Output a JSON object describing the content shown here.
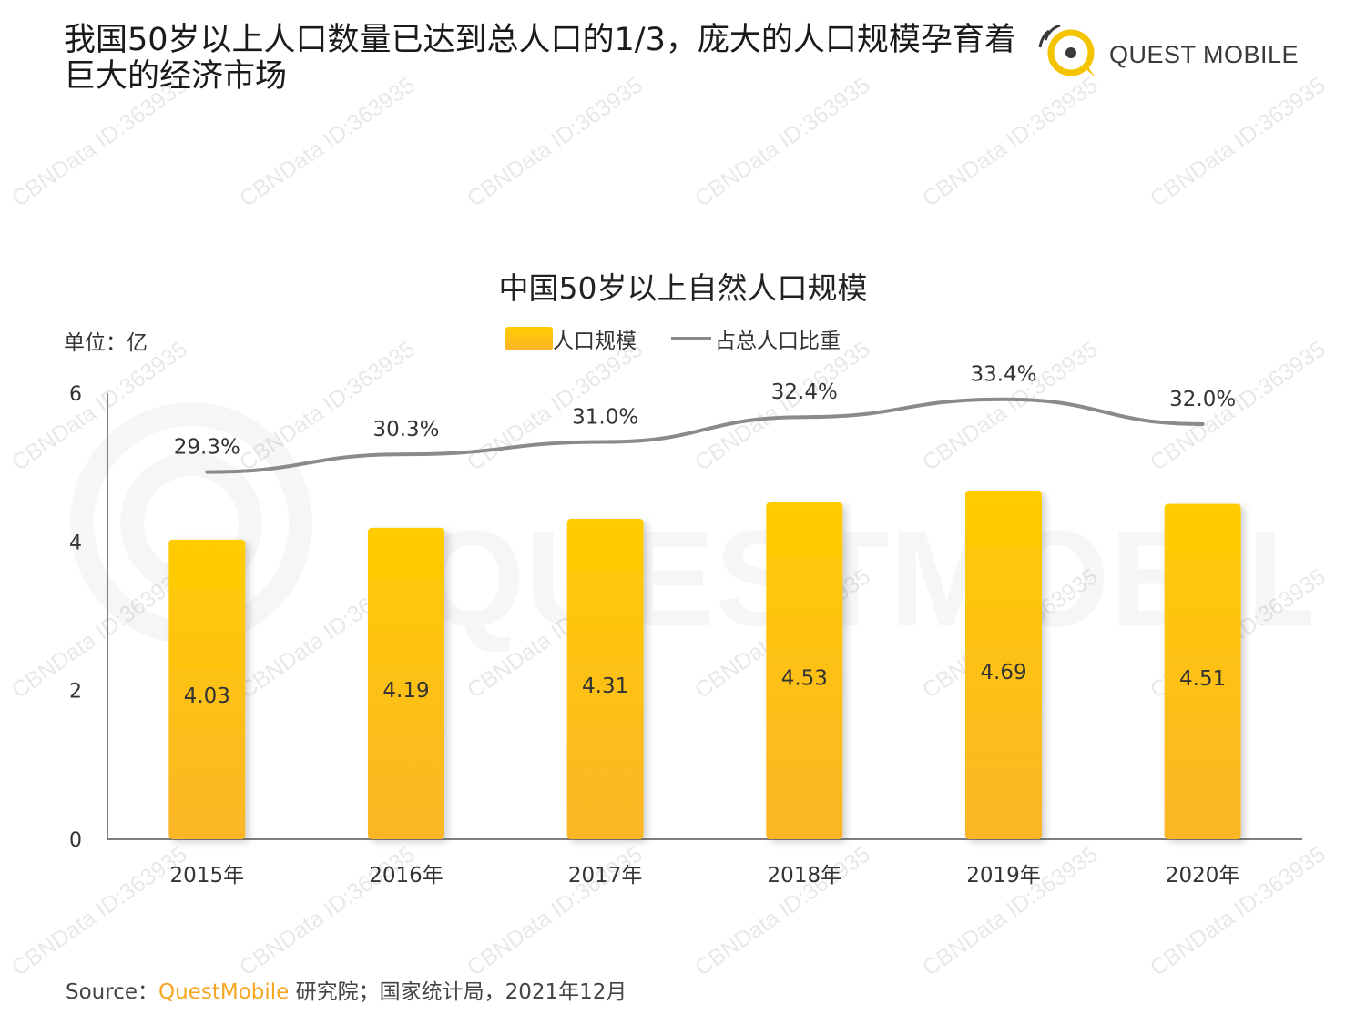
{
  "headline": "我国50岁以上人口数量已达到总人口的1/3，庞大的人口规模孕育着巨大的经济市场",
  "logo": {
    "text": "QUEST MOBILE",
    "icon": "quest-mobile-logo-icon",
    "color": "#f5c400"
  },
  "watermark": {
    "text": "CBNData ID:363935",
    "background_logo_text": "QUESTMOBILE"
  },
  "unit_label": "单位：亿",
  "legend": {
    "bar_label": "人口规模",
    "line_label": "占总人口比重"
  },
  "source": {
    "prefix": "Source：",
    "brand": "QuestMobile",
    "suffix": " 研究院；国家统计局，2021年12月"
  },
  "colors": {
    "bar_top": "#ffcc00",
    "bar_bottom": "#fbb628",
    "line": "#8a8a8a",
    "accent": "#f5a623"
  },
  "chart_data": {
    "type": "bar",
    "title": "中国50岁以上自然人口规模",
    "categories": [
      "2015年",
      "2016年",
      "2017年",
      "2018年",
      "2019年",
      "2020年"
    ],
    "series": [
      {
        "name": "人口规模",
        "type": "bar",
        "values": [
          4.03,
          4.19,
          4.31,
          4.53,
          4.69,
          4.51
        ],
        "labels": [
          "4.03",
          "4.19",
          "4.31",
          "4.53",
          "4.69",
          "4.51"
        ]
      },
      {
        "name": "占总人口比重",
        "type": "line",
        "values": [
          29.3,
          30.3,
          31.0,
          32.4,
          33.4,
          32.0
        ],
        "labels": [
          "29.3%",
          "30.3%",
          "31.0%",
          "32.4%",
          "33.4%",
          "32.0%"
        ]
      }
    ],
    "ylim": [
      0,
      6
    ],
    "yticks": [
      "0",
      "2",
      "4",
      "6"
    ],
    "ylabel": "单位：亿",
    "grid": false,
    "legend_position": "top-center"
  }
}
